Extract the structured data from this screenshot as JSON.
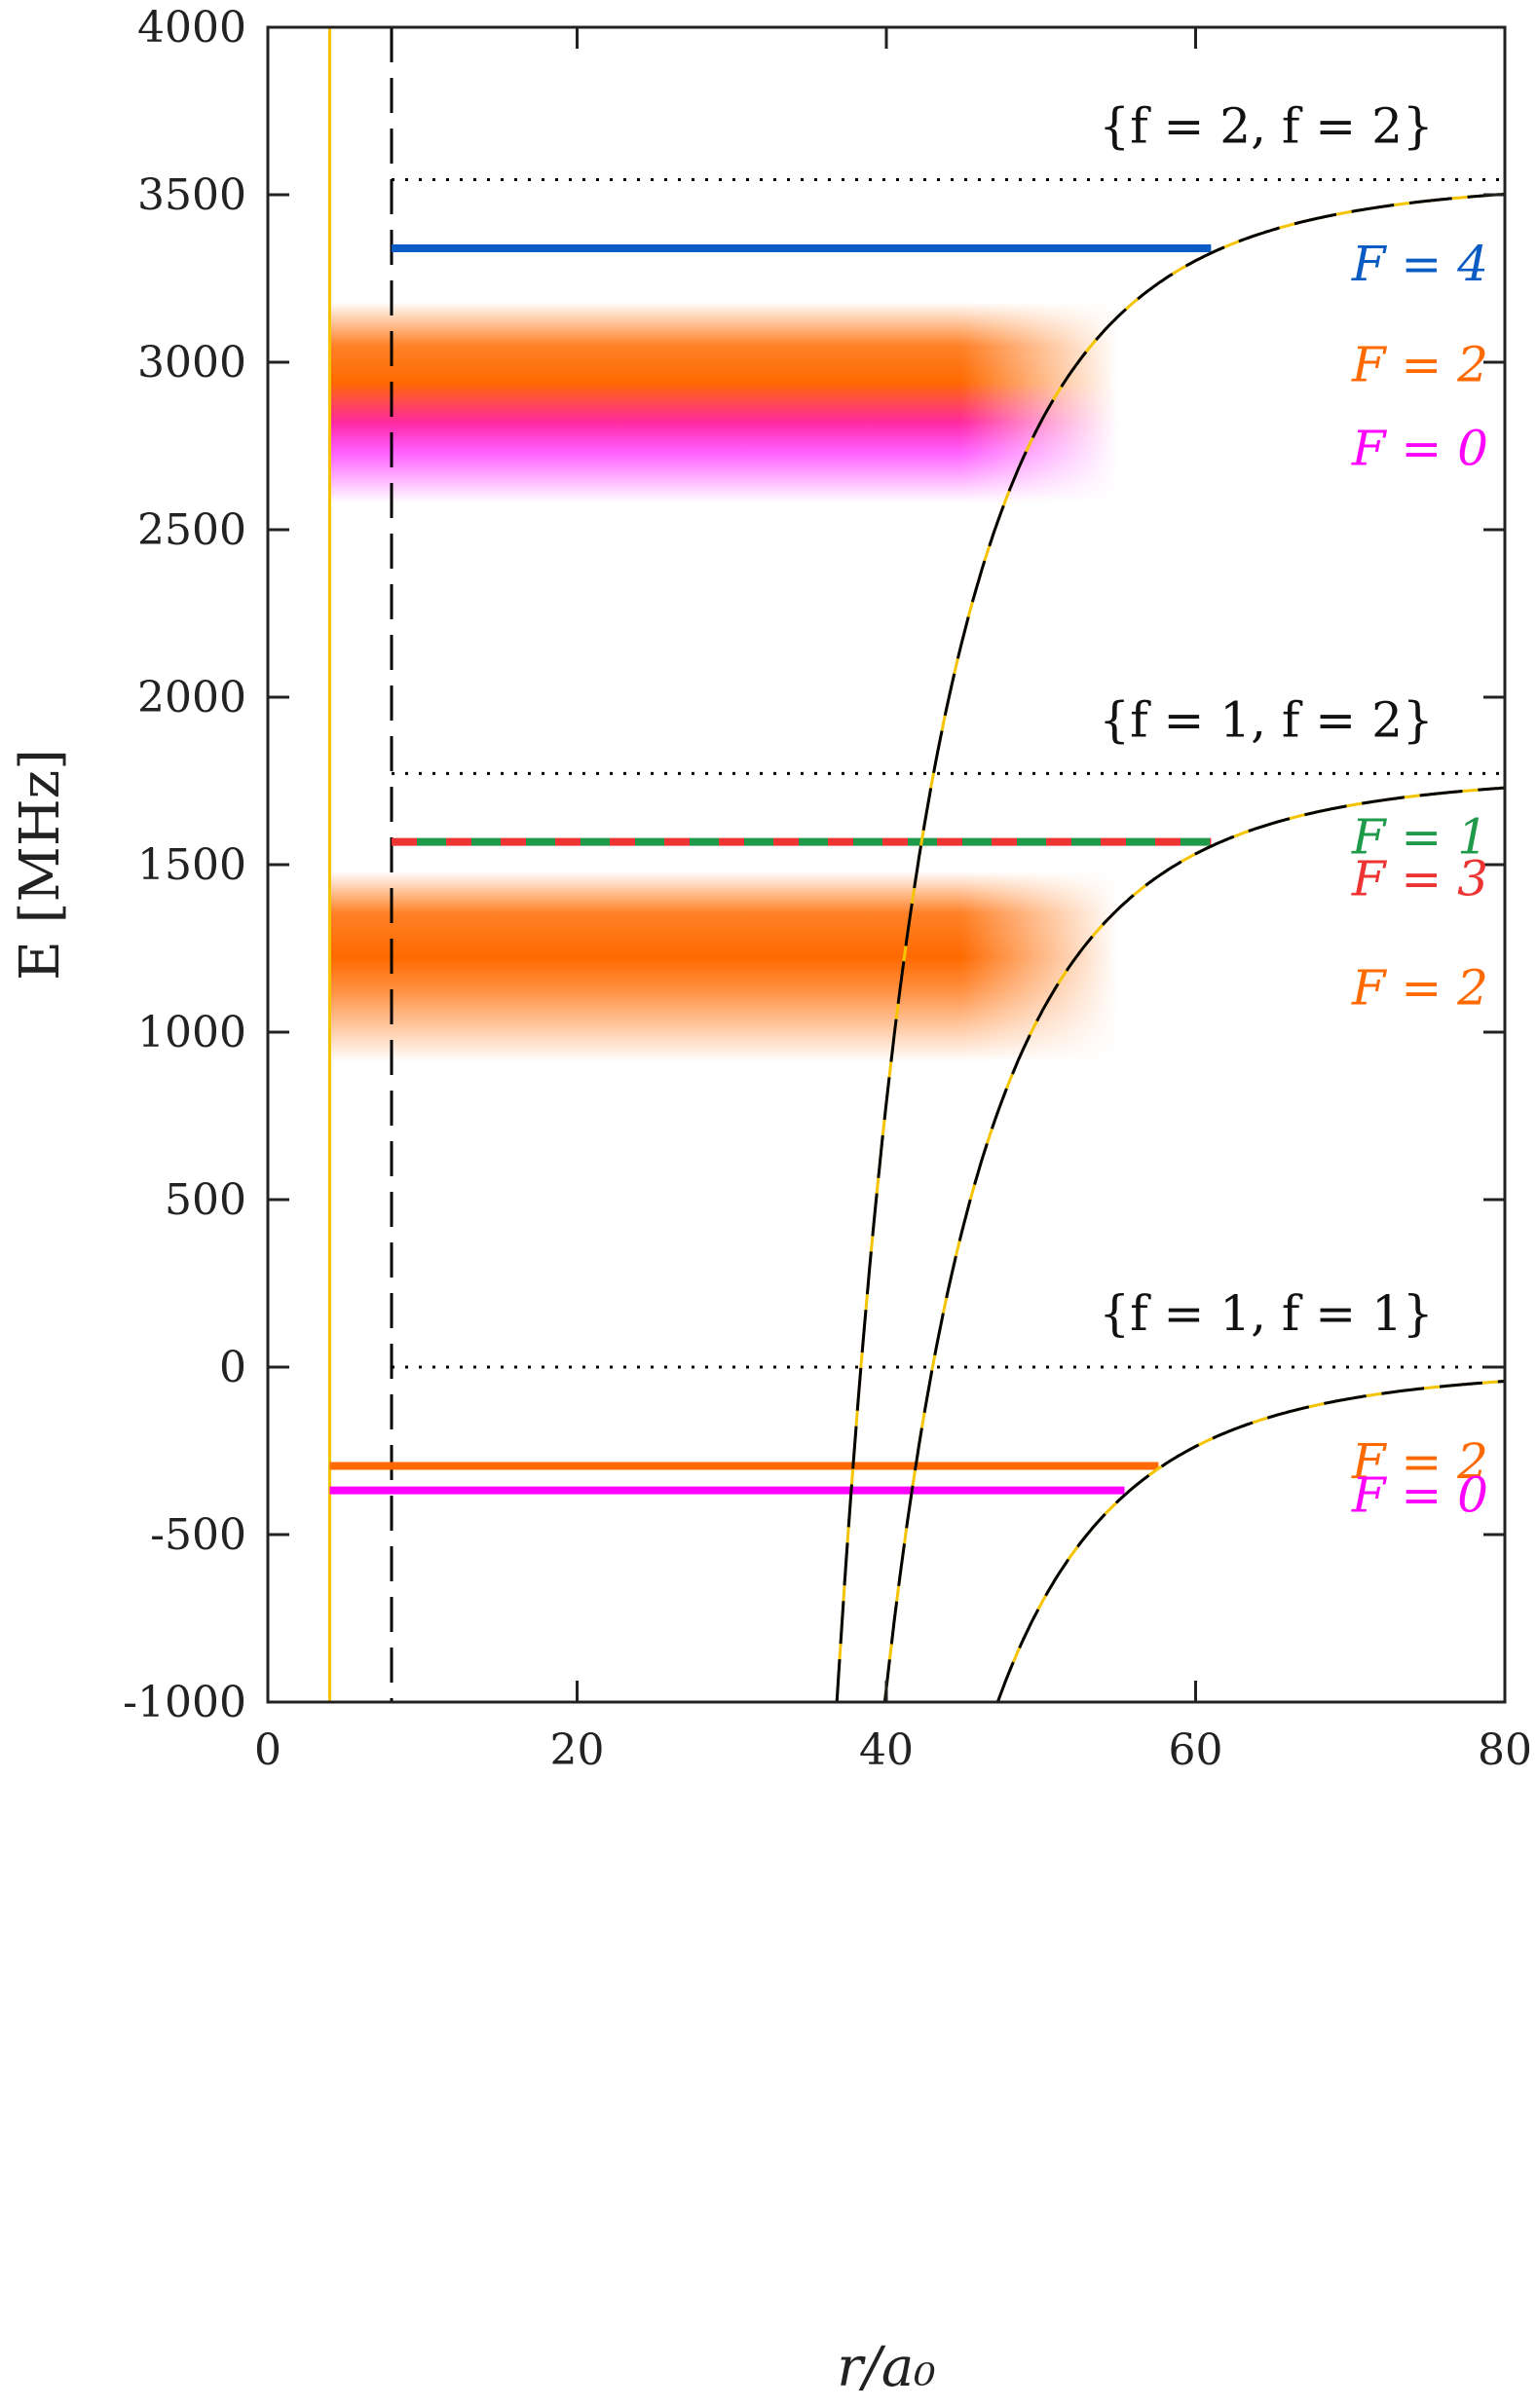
{
  "chart_data": {
    "type": "line",
    "xlabel": "r/a₀",
    "ylabel": "E [MHz]",
    "xlim": [
      0,
      80
    ],
    "ylim": [
      -1000,
      4000
    ],
    "xticks": [
      0,
      20,
      40,
      60,
      80
    ],
    "yticks": [
      -1000,
      -500,
      0,
      500,
      1000,
      1500,
      2000,
      2500,
      3000,
      3500,
      4000
    ],
    "ytick_labels": [
      "-1000",
      "-500",
      "0",
      "500",
      "1000",
      "1500",
      "2000",
      "2500",
      "3000",
      "3500",
      "4000"
    ],
    "xtick_labels": [
      "0",
      "20",
      "40",
      "60",
      "80"
    ],
    "grid": false,
    "vertical_lines": [
      {
        "x": 4,
        "style": "solid",
        "color": "#f5c400"
      },
      {
        "x": 8,
        "style": "dashed",
        "color": "#000000"
      }
    ],
    "thresholds": [
      {
        "label": "{f = 2, f = 2}",
        "E": 3545
      },
      {
        "label": "{f = 1, f = 2}",
        "E": 1772
      },
      {
        "label": "{f = 1, f = 1}",
        "E": 0
      }
    ],
    "potential_curves": [
      {
        "asymptote": 3545,
        "C6_scale": 1.0,
        "x_start": 36.8
      },
      {
        "asymptote": 1772,
        "C6_scale": 1.0,
        "x_start": 39.9
      },
      {
        "asymptote": 0,
        "C6_scale": 1.0,
        "x_start": 47.2
      }
    ],
    "levels": [
      {
        "F": 4,
        "E": 3340,
        "x_start": 8,
        "x_end": 61,
        "color": "#0a5bc4"
      },
      {
        "F": 1,
        "E": 1568,
        "x_start": 8,
        "x_end": 61,
        "color": "#1e9a4a"
      },
      {
        "F": 3,
        "E": 1568,
        "x_start": 8,
        "x_end": 61,
        "color": "#ee3333"
      },
      {
        "F": 2,
        "E": -295,
        "x_start": 4,
        "x_end": 57.6,
        "color": "#ff6a00"
      },
      {
        "F": 0,
        "E": -368,
        "x_start": 4,
        "x_end": 55.4,
        "color": "#ff00ff"
      }
    ],
    "bands": [
      {
        "E_center": 2980,
        "E_min": 2580,
        "E_max": 3180,
        "colors": [
          "#ff6a00",
          "#ff1f9a",
          "#ff00ff"
        ]
      },
      {
        "E_center": 1220,
        "E_min": 910,
        "E_max": 1480,
        "colors": [
          "#ff6a00"
        ]
      }
    ],
    "annotations": [
      {
        "text": "F = 4",
        "E": 3290,
        "color": "#0a5bc4"
      },
      {
        "text": "F = 2",
        "E": 2990,
        "color": "#ff6a00"
      },
      {
        "text": "F = 0",
        "E": 2740,
        "color": "#ff00ff"
      },
      {
        "text": "F = 1",
        "E": 1580,
        "color": "#1e9a4a"
      },
      {
        "text": "F = 3",
        "E": 1455,
        "color": "#ee3333"
      },
      {
        "text": "F = 2",
        "E": 1130,
        "color": "#ff6a00"
      },
      {
        "text": "F = 2",
        "E": -285,
        "color": "#ff6a00"
      },
      {
        "text": "F = 0",
        "E": -385,
        "color": "#ff00ff"
      }
    ]
  }
}
